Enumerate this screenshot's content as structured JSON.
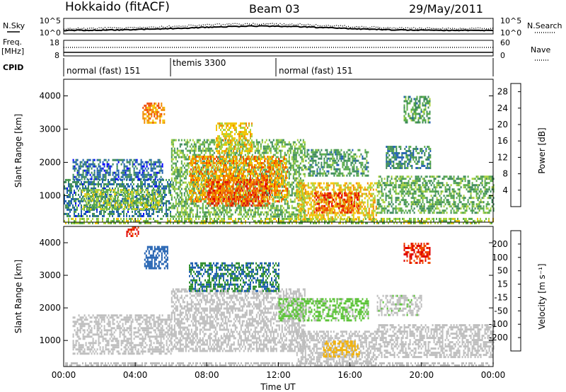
{
  "header": {
    "site": "Hokkaido (fitACF)",
    "beam": "Beam 03",
    "date": "29/May/2011"
  },
  "panels": {
    "nsky_label": "N.Sky",
    "nsearch_label": "N.Search",
    "nsky_ticks": [
      "10^5",
      "10^0"
    ],
    "freq_label": "Freq.",
    "freq_unit": "[MHz]",
    "freq_ticks": [
      "18",
      "8"
    ],
    "nave_label": "Nave",
    "nave_ticks": [
      "60",
      "0"
    ],
    "cpid_label": "CPID",
    "cpid_segments": [
      "normal (fast) 151",
      "themis 3300",
      "normal (fast) 151"
    ]
  },
  "colors": {
    "power": [
      "#0000ff",
      "#1f5fb0",
      "#3c8a5a",
      "#5aac4a",
      "#a8d23c",
      "#f2c400",
      "#f28c00",
      "#f04a00",
      "#e00000"
    ],
    "velocity": [
      "#e00000",
      "#f04a00",
      "#f28c00",
      "#f2b000",
      "#bdbdbd",
      "#bdbdbd",
      "#5ec43a",
      "#2f8f2f",
      "#1f5fb0",
      "#0000ff"
    ],
    "ground_scatter": "#bdbdbd"
  },
  "chart_data": [
    {
      "type": "heatmap",
      "title": "",
      "xlabel": "Time UT",
      "ylabel": "Slant Range [km]",
      "x_ticks": [
        "00:00",
        "04:00",
        "08:00",
        "12:00",
        "16:00",
        "20:00",
        "00:00"
      ],
      "xlim": [
        0,
        24
      ],
      "y_ticks": [
        "1000",
        "2000",
        "3000",
        "4000"
      ],
      "ylim": [
        200,
        4500
      ],
      "colorbar": {
        "label": "Power [dB]",
        "ticks": [
          "4",
          "8",
          "12",
          "16",
          "20",
          "24",
          "28"
        ],
        "range": [
          0,
          30
        ]
      },
      "regions": [
        {
          "t": [
            0.0,
            24.0
          ],
          "r": [
            200,
            330
          ],
          "value": 14
        },
        {
          "t": [
            0.0,
            6.0
          ],
          "r": [
            400,
            1500
          ],
          "value": 7
        },
        {
          "t": [
            0.5,
            5.5
          ],
          "r": [
            1500,
            2100
          ],
          "value": 6
        },
        {
          "t": [
            1.0,
            5.5
          ],
          "r": [
            600,
            1200
          ],
          "value": 14
        },
        {
          "t": [
            4.4,
            5.6
          ],
          "r": [
            3200,
            3800
          ],
          "value": 22
        },
        {
          "t": [
            6.0,
            13.5
          ],
          "r": [
            400,
            2700
          ],
          "value": 12
        },
        {
          "t": [
            7.0,
            12.5
          ],
          "r": [
            800,
            2200
          ],
          "value": 21
        },
        {
          "t": [
            8.0,
            11.5
          ],
          "r": [
            700,
            1500
          ],
          "value": 25
        },
        {
          "t": [
            8.5,
            10.5
          ],
          "r": [
            2300,
            3200
          ],
          "value": 18
        },
        {
          "t": [
            13.0,
            17.5
          ],
          "r": [
            300,
            1400
          ],
          "value": 18
        },
        {
          "t": [
            14.0,
            16.5
          ],
          "r": [
            500,
            1100
          ],
          "value": 25
        },
        {
          "t": [
            13.5,
            17.0
          ],
          "r": [
            1600,
            2400
          ],
          "value": 10
        },
        {
          "t": [
            17.5,
            24.0
          ],
          "r": [
            500,
            1600
          ],
          "value": 11
        },
        {
          "t": [
            18.0,
            20.5
          ],
          "r": [
            1800,
            2500
          ],
          "value": 8
        },
        {
          "t": [
            19.0,
            20.5
          ],
          "r": [
            3200,
            4000
          ],
          "value": 10
        }
      ]
    },
    {
      "type": "heatmap",
      "title": "",
      "xlabel": "Time UT",
      "ylabel": "Slant Range [km]",
      "x_ticks": [
        "00:00",
        "04:00",
        "08:00",
        "12:00",
        "16:00",
        "20:00",
        "00:00"
      ],
      "xlim": [
        0,
        24
      ],
      "y_ticks": [
        "1000",
        "2000",
        "3000",
        "4000"
      ],
      "ylim": [
        200,
        4500
      ],
      "colorbar": {
        "label": "Velocity [m s⁻¹]",
        "ticks": [
          "200",
          "100",
          "50",
          "15",
          "-15",
          "-50",
          "-100",
          "-200"
        ],
        "range": [
          -250,
          250
        ]
      },
      "regions": [
        {
          "t": [
            0.0,
            24.0
          ],
          "r": [
            200,
            330
          ],
          "value": 0
        },
        {
          "t": [
            0.5,
            6.0
          ],
          "r": [
            600,
            1800
          ],
          "value": 0
        },
        {
          "t": [
            6.0,
            13.5
          ],
          "r": [
            700,
            2600
          ],
          "value": 0
        },
        {
          "t": [
            13.0,
            17.5
          ],
          "r": [
            300,
            1300
          ],
          "value": -20
        },
        {
          "t": [
            14.5,
            16.5
          ],
          "r": [
            500,
            1000
          ],
          "value": -60
        },
        {
          "t": [
            17.5,
            24.0
          ],
          "r": [
            500,
            1500
          ],
          "value": 0
        },
        {
          "t": [
            4.5,
            5.8
          ],
          "r": [
            3200,
            3900
          ],
          "value": 180
        },
        {
          "t": [
            7.0,
            12.0
          ],
          "r": [
            2500,
            3400
          ],
          "value": 150
        },
        {
          "t": [
            12.0,
            17.0
          ],
          "r": [
            1600,
            2300
          ],
          "value": 60
        },
        {
          "t": [
            17.5,
            20.0
          ],
          "r": [
            1800,
            2400
          ],
          "value": 40
        },
        {
          "t": [
            19.0,
            20.5
          ],
          "r": [
            3400,
            4000
          ],
          "value": -200
        },
        {
          "t": [
            3.5,
            4.2
          ],
          "r": [
            4200,
            4500
          ],
          "value": -200
        }
      ]
    }
  ]
}
